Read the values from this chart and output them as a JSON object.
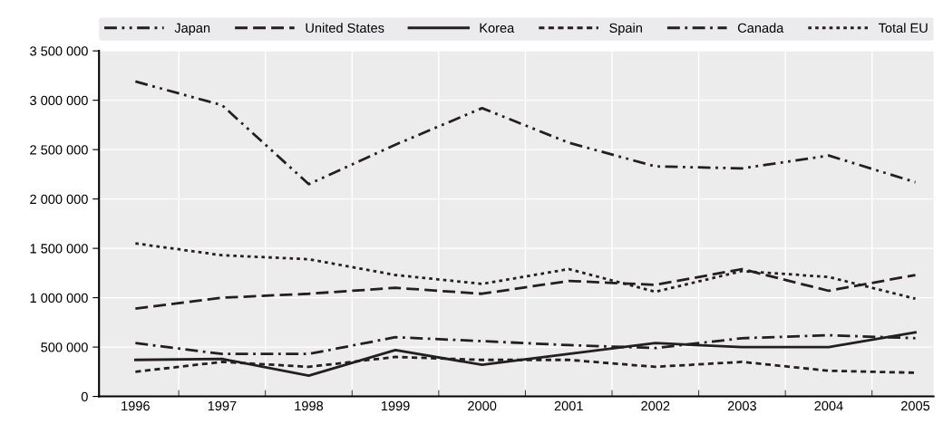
{
  "chart_data": {
    "type": "line",
    "categories": [
      "1996",
      "1997",
      "1998",
      "1999",
      "2000",
      "2001",
      "2002",
      "2003",
      "2004",
      "2005"
    ],
    "series": [
      {
        "name": "Japan",
        "color": "#231f20",
        "line_style": "dashdotdot",
        "values": [
          3190000,
          2950000,
          2150000,
          2550000,
          2920000,
          2570000,
          2330000,
          2310000,
          2440000,
          2170000
        ]
      },
      {
        "name": "United States",
        "color": "#231f20",
        "line_style": "dashed",
        "values": [
          890000,
          1000000,
          1040000,
          1100000,
          1040000,
          1170000,
          1130000,
          1290000,
          1070000,
          1230000
        ]
      },
      {
        "name": "Korea",
        "color": "#231f20",
        "line_style": "solid",
        "values": [
          370000,
          380000,
          210000,
          470000,
          320000,
          430000,
          540000,
          500000,
          500000,
          650000
        ]
      },
      {
        "name": "Spain",
        "color": "#231f20",
        "line_style": "shortdashed",
        "values": [
          250000,
          350000,
          300000,
          400000,
          370000,
          370000,
          300000,
          350000,
          260000,
          240000
        ]
      },
      {
        "name": "Canada",
        "color": "#231f20",
        "line_style": "dashdot",
        "values": [
          540000,
          430000,
          430000,
          600000,
          560000,
          520000,
          490000,
          590000,
          620000,
          590000
        ]
      },
      {
        "name": "Total EU",
        "color": "#231f20",
        "line_style": "dotted",
        "values": [
          1550000,
          1430000,
          1390000,
          1230000,
          1140000,
          1290000,
          1060000,
          1270000,
          1210000,
          990000
        ]
      }
    ],
    "ylim": [
      0,
      3500000
    ],
    "yticks": [
      0,
      {
        "value": 500000,
        "label": "500 000"
      },
      {
        "value": 1000000,
        "label": "1 000 000"
      },
      {
        "value": 1500000,
        "label": "1 500 000"
      },
      {
        "value": 2000000,
        "label": "2 000 000"
      },
      {
        "value": 2500000,
        "label": "2 500 000"
      },
      {
        "value": 3000000,
        "label": "3 000 000"
      },
      {
        "value": 3500000,
        "label": "3 500 000"
      }
    ],
    "grid": true,
    "legend": "top",
    "marker": "none"
  }
}
